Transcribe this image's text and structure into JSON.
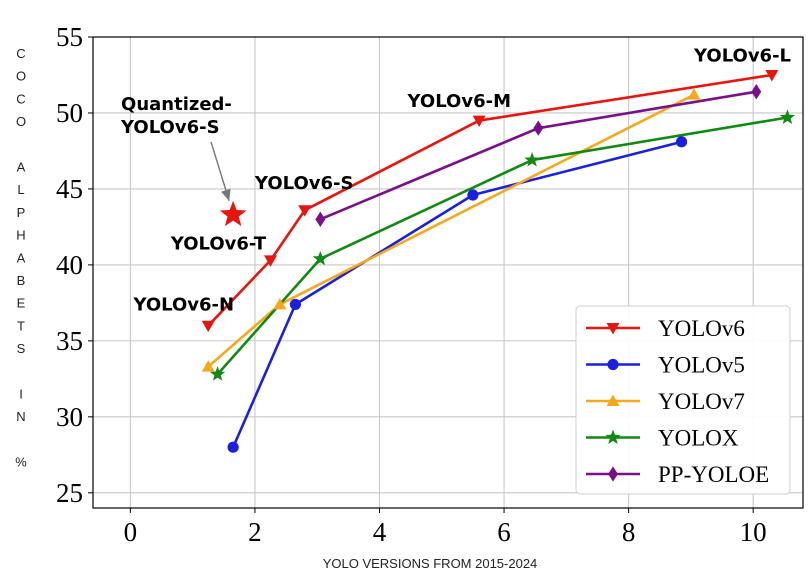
{
  "chart_data": {
    "type": "line",
    "xlabel": "YOLO VERSIONS FROM 2015-2024",
    "ylabel": "COCO ALPHABETS IN %",
    "ylabel_chars": [
      "C",
      "O",
      "C",
      "O",
      "",
      "A",
      "L",
      "P",
      "H",
      "A",
      "B",
      "E",
      "T",
      "S",
      "",
      "I",
      "N",
      "",
      "%"
    ],
    "xlim": [
      -0.6,
      10.8
    ],
    "ylim": [
      24,
      55
    ],
    "x_ticks": [
      0,
      2,
      4,
      6,
      8,
      10
    ],
    "x_tick_labels": [
      "0",
      "2",
      "4",
      "6",
      "8",
      "10"
    ],
    "y_ticks": [
      25,
      30,
      35,
      40,
      45,
      50,
      55
    ],
    "y_tick_labels": [
      "25",
      "30",
      "35",
      "40",
      "45",
      "50",
      "55"
    ],
    "grid": true,
    "legend_position": "bottom-right",
    "series": [
      {
        "name": "YOLOv6",
        "color": "#e8150f",
        "marker": "triangle-down",
        "x": [
          1.25,
          2.25,
          2.8,
          5.6,
          10.3
        ],
        "y": [
          36.0,
          40.3,
          43.6,
          49.5,
          52.5
        ]
      },
      {
        "name": "YOLOv5",
        "color": "#1a1fe0",
        "marker": "circle",
        "x": [
          1.65,
          2.65,
          5.5,
          8.85
        ],
        "y": [
          28.0,
          37.4,
          44.6,
          48.1
        ]
      },
      {
        "name": "YOLOv7",
        "color": "#f7a81a",
        "marker": "triangle-up",
        "x": [
          1.25,
          2.4,
          9.05
        ],
        "y": [
          33.3,
          37.4,
          51.2
        ]
      },
      {
        "name": "YOLOX",
        "color": "#118a14",
        "marker": "star",
        "x": [
          1.4,
          3.05,
          6.45,
          10.55
        ],
        "y": [
          32.8,
          40.4,
          46.9,
          49.7
        ]
      },
      {
        "name": "PP-YOLOE",
        "color": "#7a0f8a",
        "marker": "diamond",
        "x": [
          3.05,
          6.55,
          10.05
        ],
        "y": [
          43.0,
          49.0,
          51.4
        ]
      }
    ],
    "special_point": {
      "x": 1.65,
      "y": 43.3,
      "color": "#e8150f",
      "marker": "star"
    },
    "annotations": [
      {
        "text": "YOLOv6-N",
        "x": 0.05,
        "y": 37.0
      },
      {
        "text": "YOLOv6-T",
        "x": 0.65,
        "y": 41.0
      },
      {
        "text": "YOLOv6-S",
        "x": 2.0,
        "y": 45.0
      },
      {
        "text": "YOLOv6-M",
        "x": 4.45,
        "y": 50.4
      },
      {
        "text": "YOLOv6-L",
        "x": 9.05,
        "y": 53.4
      }
    ],
    "quantized_label": {
      "lines": [
        "Quantized-",
        "YOLOv6-S"
      ],
      "x": -0.15,
      "y": 50.2
    }
  }
}
